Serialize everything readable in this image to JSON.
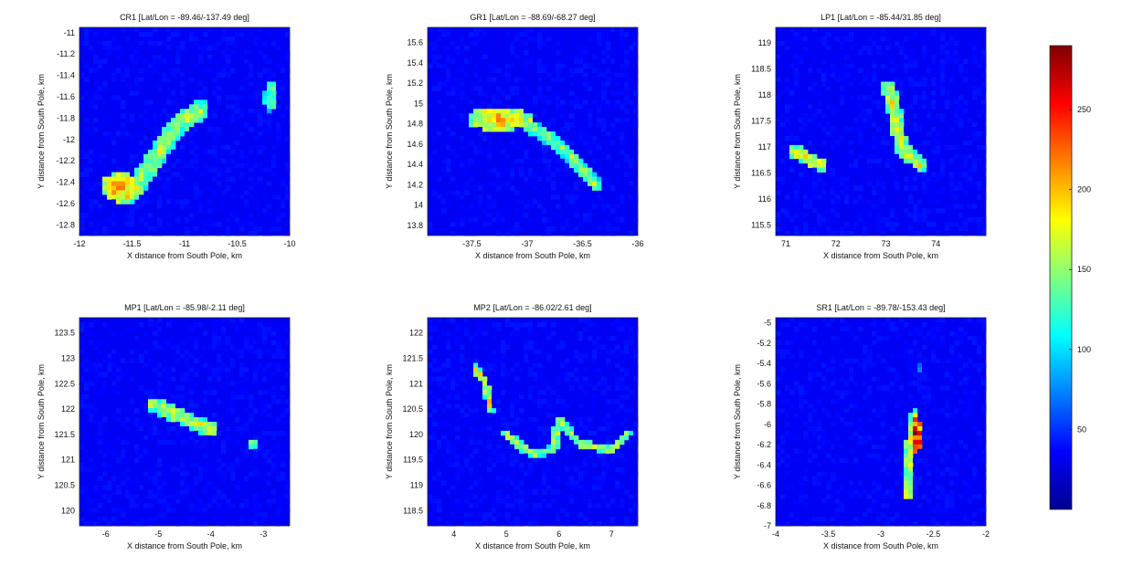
{
  "chart_data": [
    {
      "type": "heatmap",
      "title": "CR1 [Lat/Lon = -89.46/-137.49 deg]",
      "xlabel": "X distance from South Pole, km",
      "ylabel": "Y distance from South Pole, km",
      "xlim": [
        -12,
        -10
      ],
      "ylim": [
        -12.9,
        -10.95
      ],
      "xticks": [
        -12,
        -11.5,
        -11,
        -10.5,
        -10
      ],
      "yticks": [
        -12.8,
        -12.6,
        -12.4,
        -12.2,
        -12,
        -11.8,
        -11.6,
        -11.4,
        -11.2,
        -11
      ],
      "features": [
        {
          "shape": "line",
          "points": [
            [
              -11.5,
              -12.5
            ],
            [
              -11.3,
              -12.2
            ],
            [
              -11.05,
              -11.85
            ],
            [
              -10.85,
              -11.72
            ]
          ],
          "width": 0.18,
          "value": 160
        },
        {
          "shape": "blob",
          "center": [
            -11.6,
            -12.45
          ],
          "radius": [
            0.2,
            0.14
          ],
          "value": 195
        },
        {
          "shape": "blob",
          "center": [
            -10.18,
            -11.6
          ],
          "radius": [
            0.07,
            0.14
          ],
          "value": 135
        }
      ]
    },
    {
      "type": "heatmap",
      "title": "GR1 [Lat/Lon = -88.69/-68.27 deg]",
      "xlabel": "X distance from South Pole, km",
      "ylabel": "Y distance from South Pole, km",
      "xlim": [
        -37.9,
        -36
      ],
      "ylim": [
        13.7,
        15.75
      ],
      "xticks": [
        -37.5,
        -37,
        -36.5,
        -36
      ],
      "yticks": [
        13.8,
        14,
        14.2,
        14.4,
        14.6,
        14.8,
        15,
        15.2,
        15.4,
        15.6
      ],
      "features": [
        {
          "shape": "blob",
          "center": [
            -37.25,
            14.85
          ],
          "radius": [
            0.3,
            0.12
          ],
          "value": 190
        },
        {
          "shape": "line",
          "points": [
            [
              -37.0,
              14.8
            ],
            [
              -36.75,
              14.62
            ],
            [
              -36.55,
              14.42
            ],
            [
              -36.38,
              14.2
            ]
          ],
          "width": 0.12,
          "value": 150
        }
      ]
    },
    {
      "type": "heatmap",
      "title": "LP1 [Lat/Lon = -85.44/31.85 deg]",
      "xlabel": "X distance from South Pole, km",
      "ylabel": "Y distance from South Pole, km",
      "xlim": [
        70.8,
        75
      ],
      "ylim": [
        115.3,
        119.3
      ],
      "xticks": [
        71,
        72,
        73,
        74
      ],
      "yticks": [
        115.5,
        116,
        116.5,
        117,
        117.5,
        118,
        118.5,
        119
      ],
      "features": [
        {
          "shape": "line",
          "points": [
            [
              73.05,
              118.15
            ],
            [
              73.2,
              117.6
            ],
            [
              73.3,
              117.0
            ],
            [
              73.7,
              116.65
            ]
          ],
          "width": 0.28,
          "value": 175
        },
        {
          "shape": "line",
          "points": [
            [
              71.2,
              116.9
            ],
            [
              71.7,
              116.65
            ]
          ],
          "width": 0.28,
          "value": 185
        }
      ]
    },
    {
      "type": "heatmap",
      "title": "MP1 [Lat/Lon = -85.98/-2.11 deg]",
      "xlabel": "X distance from South Pole, km",
      "ylabel": "Y distance from South Pole, km",
      "xlim": [
        -6.5,
        -2.5
      ],
      "ylim": [
        119.7,
        123.8
      ],
      "xticks": [
        -6,
        -5,
        -4,
        -3
      ],
      "yticks": [
        120,
        120.5,
        121,
        121.5,
        122,
        122.5,
        123,
        123.5
      ],
      "features": [
        {
          "shape": "line",
          "points": [
            [
              -5.1,
              122.1
            ],
            [
              -4.6,
              121.85
            ],
            [
              -4.0,
              121.6
            ]
          ],
          "width": 0.28,
          "value": 175
        },
        {
          "shape": "blob",
          "center": [
            -3.2,
            121.3
          ],
          "radius": [
            0.12,
            0.12
          ],
          "value": 140
        }
      ]
    },
    {
      "type": "heatmap",
      "title": "MP2 [Lat/Lon = -86.02/2.61 deg]",
      "xlabel": "X distance from South Pole, km",
      "ylabel": "Y distance from South Pole, km",
      "xlim": [
        3.5,
        7.5
      ],
      "ylim": [
        118.2,
        122.3
      ],
      "xticks": [
        4,
        5,
        6,
        7
      ],
      "yticks": [
        118.5,
        119,
        119.5,
        120,
        120.5,
        121,
        121.5,
        122
      ],
      "features": [
        {
          "shape": "line",
          "points": [
            [
              4.4,
              121.3
            ],
            [
              4.6,
              121.0
            ],
            [
              4.7,
              120.5
            ]
          ],
          "width": 0.14,
          "value": 185
        },
        {
          "shape": "line",
          "points": [
            [
              5.0,
              120.0
            ],
            [
              5.5,
              119.6
            ],
            [
              5.9,
              119.7
            ],
            [
              6.0,
              120.3
            ],
            [
              6.4,
              119.8
            ],
            [
              7.0,
              119.7
            ],
            [
              7.3,
              120.0
            ]
          ],
          "width": 0.16,
          "value": 160
        }
      ]
    },
    {
      "type": "heatmap",
      "title": "SR1 [Lat/Lon = -89.78/-153.43 deg]",
      "xlabel": "X distance from South Pole, km",
      "ylabel": "Y distance from South Pole, km",
      "xlim": [
        -4,
        -2
      ],
      "ylim": [
        -7,
        -4.95
      ],
      "xticks": [
        -4,
        -3.5,
        -3,
        -2.5,
        -2
      ],
      "yticks": [
        -7,
        -6.8,
        -6.6,
        -6.4,
        -6.2,
        -6,
        -5.8,
        -5.6,
        -5.4,
        -5.2,
        -5
      ],
      "features": [
        {
          "shape": "line",
          "points": [
            [
              -2.75,
              -6.7
            ],
            [
              -2.72,
              -6.2
            ],
            [
              -2.68,
              -5.9
            ]
          ],
          "width": 0.09,
          "value": 175
        },
        {
          "shape": "blob",
          "center": [
            -2.66,
            -6.1
          ],
          "radius": [
            0.05,
            0.18
          ],
          "value": 255
        },
        {
          "shape": "blob",
          "center": [
            -2.62,
            -5.45
          ],
          "radius": [
            0.03,
            0.04
          ],
          "value": 90
        }
      ]
    }
  ],
  "colorbar": {
    "ticks": [
      50,
      100,
      150,
      200,
      250
    ],
    "range": [
      0,
      290
    ],
    "colors": [
      "#00008f",
      "#0000ff",
      "#0080ff",
      "#00ffff",
      "#80ff80",
      "#ffff00",
      "#ff8000",
      "#ff0000",
      "#800000"
    ]
  }
}
